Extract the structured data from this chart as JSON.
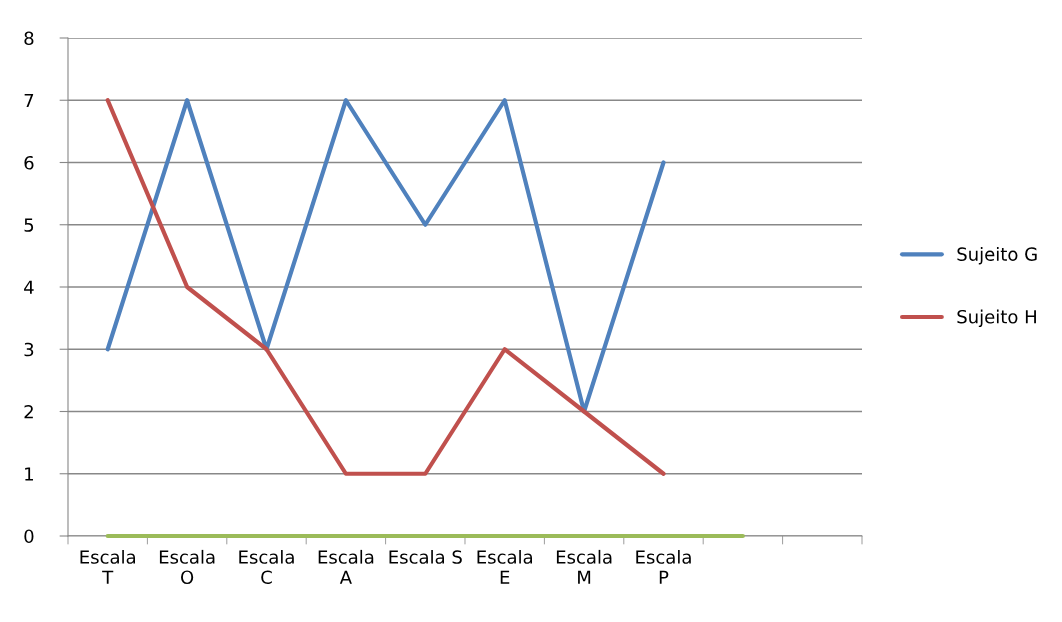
{
  "chart_data": {
    "type": "line",
    "categories": [
      "Escala\nT",
      "Escala\nO",
      "Escala\nC",
      "Escala\nA",
      "Escala S",
      "Escala\nE",
      "Escala\nM",
      "Escala\nP",
      null,
      null
    ],
    "series": [
      {
        "name": "Sujeito G",
        "color": "#4f81bd",
        "values": [
          3,
          7,
          3,
          7,
          5,
          7,
          2,
          6,
          null,
          null
        ]
      },
      {
        "name": "Sujeito H",
        "color": "#c0504d",
        "values": [
          7,
          4,
          3,
          1,
          1,
          3,
          2,
          1,
          null,
          null
        ]
      },
      {
        "color": "#9bbb59",
        "values": [
          0,
          0,
          0,
          0,
          0,
          0,
          0,
          0,
          0,
          null
        ]
      }
    ],
    "ylim": [
      0,
      8
    ],
    "yticks": [
      0,
      1,
      2,
      3,
      4,
      5,
      6,
      7,
      8
    ],
    "grid": "y",
    "legend": "right",
    "marker": "none",
    "line_style": "solid"
  }
}
